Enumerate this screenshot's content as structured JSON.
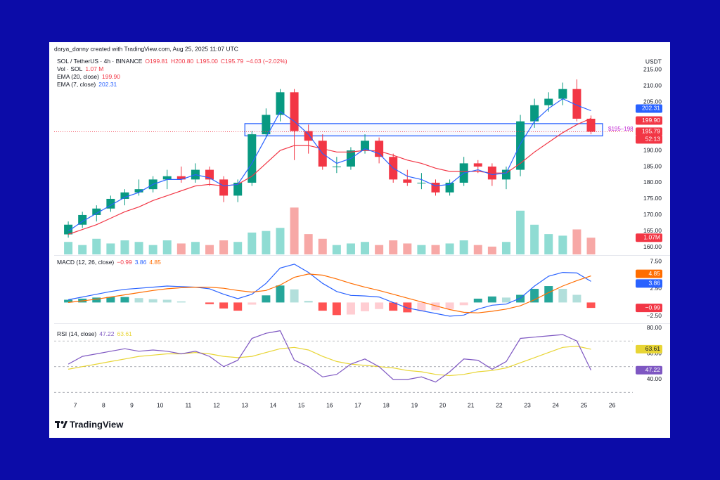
{
  "header": {
    "credit": "darya_danny created with TradingView.com, Aug 25, 2025 11:07 UTC",
    "logo": "TradingView",
    "currency": "USDT"
  },
  "chart_data": [
    {
      "type": "candlestick",
      "symbol": "SOL / TetherUS · 4h · BINANCE",
      "ohlc_text": [
        "O199.81",
        "H200.80",
        "L195.00",
        "C195.79",
        "−4.03 (−2.02%)"
      ],
      "x": [
        6.75,
        7.25,
        7.75,
        8.25,
        8.75,
        9.25,
        9.75,
        10.25,
        10.75,
        11.25,
        11.75,
        12.25,
        12.75,
        13.25,
        13.75,
        14.25,
        14.75,
        15.25,
        15.75,
        16.25,
        16.75,
        17.25,
        17.75,
        18.25,
        18.75,
        19.25,
        19.75,
        20.25,
        20.75,
        21.25,
        21.75,
        22.25,
        22.75,
        23.25,
        23.75,
        24.25,
        24.75,
        25.25
      ],
      "open": [
        164,
        167,
        170,
        172,
        175,
        177,
        178,
        181,
        182,
        181,
        184,
        181,
        176,
        180,
        195,
        201,
        208,
        196,
        193,
        185,
        185,
        190,
        193,
        188,
        181,
        180,
        180,
        177,
        180,
        186,
        185,
        181,
        184,
        199,
        204,
        206,
        209,
        199.81
      ],
      "high": [
        168,
        171,
        173,
        176,
        178,
        181,
        182,
        184,
        185,
        186,
        185,
        182,
        181,
        196,
        203,
        209,
        209,
        198,
        195,
        188,
        191,
        195,
        194,
        189,
        184,
        183,
        181,
        181,
        188,
        187,
        186,
        185,
        201,
        206,
        208,
        211,
        212,
        200.8
      ],
      "low": [
        163,
        166,
        168,
        171,
        173,
        176,
        177,
        178,
        180,
        180,
        179,
        174,
        174,
        179,
        194,
        199,
        187,
        189,
        184,
        183,
        184,
        189,
        186,
        180,
        179,
        178,
        176,
        176,
        179,
        183,
        179,
        178,
        182,
        197,
        202,
        204,
        199,
        195
      ],
      "close": [
        167,
        170,
        172,
        175,
        177,
        178,
        181,
        182,
        181,
        184,
        181,
        176,
        180,
        195,
        201,
        208,
        196,
        193,
        185,
        185,
        190,
        193,
        188,
        181,
        180,
        180,
        177,
        180,
        186,
        185,
        181,
        184,
        199,
        204,
        206,
        209,
        199.82,
        195.79
      ],
      "up_color": "#089981",
      "down_color": "#f23645",
      "last_price_label": "195.79",
      "countdown": "52:13",
      "volume": {
        "name": "Vol · SOL",
        "value_label": "1.07 M",
        "tag": "1.07M",
        "values": [
          0.8,
          0.6,
          1.0,
          0.7,
          0.9,
          0.8,
          0.6,
          0.9,
          0.7,
          0.8,
          0.6,
          0.9,
          0.8,
          1.4,
          1.5,
          1.7,
          3.0,
          1.3,
          1.0,
          0.6,
          0.7,
          0.8,
          0.6,
          0.9,
          0.7,
          0.6,
          0.6,
          0.7,
          0.9,
          0.6,
          0.5,
          0.8,
          2.8,
          1.9,
          1.3,
          1.2,
          1.6,
          1.07
        ],
        "ylim": [
          0,
          3.6
        ],
        "up_color": "#8fdcd3",
        "down_color": "#f7a8a6"
      },
      "series": [
        {
          "name": "EMA (20, close)",
          "value_label": "199.90",
          "color": "#f23645",
          "values": [
            164,
            165.5,
            167,
            169,
            171,
            172.5,
            174.5,
            176,
            177.5,
            179,
            179.5,
            179,
            179.5,
            182,
            186,
            190,
            191.5,
            191.5,
            190.5,
            189.5,
            189.5,
            190,
            189.8,
            188.5,
            187,
            186,
            184.5,
            183.5,
            183.5,
            183.5,
            183,
            183,
            186,
            189.5,
            192.5,
            195.5,
            198,
            199.9
          ]
        },
        {
          "name": "EMA (7, close)",
          "value_label": "202.31",
          "color": "#2962ff",
          "values": [
            165,
            168,
            170.5,
            173,
            175.5,
            177,
            179.5,
            181,
            181,
            182.5,
            181.5,
            179,
            179.5,
            186,
            194,
            202,
            199,
            195,
            189,
            186,
            187.5,
            190.5,
            189,
            184.5,
            182,
            181,
            179,
            179.5,
            183,
            184,
            182.5,
            183,
            192,
            199,
            203,
            206,
            204,
            202.31
          ]
        }
      ],
      "zone": {
        "label": "$195–198",
        "range": [
          194.5,
          198.3
        ],
        "x": [
          13.0,
          25.66
        ],
        "color": "#2962ff",
        "label_color": "#c026d3"
      },
      "xlim": [
        6.25,
        26.73
      ],
      "ylim": [
        157.8,
        219.6
      ],
      "yticks": [
        {
          "value": 160,
          "label": "160.00"
        },
        {
          "value": 165,
          "label": "165.00"
        },
        {
          "value": 170,
          "label": "170.00"
        },
        {
          "value": 175,
          "label": "175.00"
        },
        {
          "value": 180,
          "label": "180.00"
        },
        {
          "value": 185,
          "label": "185.00"
        },
        {
          "value": 190,
          "label": "190.00"
        },
        {
          "value": 205,
          "label": "205.00"
        },
        {
          "value": 210,
          "label": "210.00"
        },
        {
          "value": 215,
          "label": "215.00"
        }
      ],
      "grid": false
    },
    {
      "type": "macd",
      "title": "MACD (12, 26, close)",
      "histogram": {
        "value_label": "−0.99",
        "tag_color": "#f23645",
        "values": [
          0.5,
          0.7,
          0.9,
          1.0,
          1.0,
          0.8,
          0.6,
          0.5,
          0.2,
          0.0,
          -0.3,
          -1.1,
          -1.5,
          -0.4,
          1.3,
          3.1,
          2.4,
          0.3,
          -1.5,
          -2.3,
          -2.2,
          -1.6,
          -1.2,
          -1.5,
          -1.8,
          -1.6,
          -1.4,
          -1.2,
          -0.5,
          0.7,
          1.1,
          0.9,
          1.4,
          2.5,
          3.0,
          2.5,
          1.4,
          -0.99
        ],
        "colors": {
          "up_rising": "#26a69a",
          "up_falling": "#b2dfdb",
          "down_falling": "#ff5252",
          "down_rising": "#ffcdd2"
        }
      },
      "series": [
        {
          "value_label": "3.86",
          "color": "#2962ff",
          "values": [
            0.5,
            1.0,
            1.5,
            2.0,
            2.4,
            2.6,
            2.8,
            3.0,
            2.9,
            2.8,
            2.5,
            1.5,
            0.7,
            1.5,
            3.5,
            6.3,
            7.0,
            5.5,
            3.5,
            2.0,
            1.3,
            1.2,
            1.0,
            0.0,
            -1.0,
            -1.5,
            -2.0,
            -2.5,
            -2.3,
            -1.2,
            -0.5,
            -0.3,
            0.8,
            3.0,
            4.8,
            5.5,
            5.4,
            3.86
          ]
        },
        {
          "value_label": "4.85",
          "color": "#ff6d00",
          "values": [
            0.0,
            0.3,
            0.6,
            1.0,
            1.4,
            1.8,
            2.2,
            2.5,
            2.7,
            2.8,
            2.8,
            2.6,
            2.2,
            1.9,
            2.2,
            3.2,
            4.6,
            5.2,
            5.0,
            4.3,
            3.5,
            2.8,
            2.2,
            1.5,
            0.8,
            0.1,
            -0.6,
            -1.3,
            -1.8,
            -1.9,
            -1.6,
            -1.2,
            -0.6,
            0.5,
            1.8,
            3.0,
            4.0,
            4.85
          ]
        }
      ],
      "xlim": [
        6.25,
        26.73
      ],
      "ylim": [
        -3.8,
        8.4
      ],
      "yticks": [
        {
          "value": 7.5,
          "label": "7.50"
        },
        {
          "value": 2.5,
          "label": "2.50"
        },
        {
          "value": -2.5,
          "label": "−2.50"
        }
      ]
    },
    {
      "type": "line",
      "title": "RSI (14, close)",
      "series": [
        {
          "value_label": "47.22",
          "color": "#7e57c2",
          "tag_text_color": "#ffffff",
          "values": [
            52,
            58,
            60,
            62,
            64,
            62,
            63,
            62,
            60,
            62,
            58,
            50,
            55,
            72,
            76,
            78,
            55,
            50,
            42,
            44,
            52,
            56,
            50,
            40,
            40,
            42,
            38,
            46,
            56,
            55,
            48,
            54,
            72,
            73,
            74,
            75,
            70,
            47.22
          ]
        },
        {
          "value_label": "63.61",
          "color": "#e8d535",
          "tag_text_color": "#131722",
          "values": [
            48,
            50,
            52,
            54,
            56,
            58,
            59,
            60,
            60,
            61,
            60,
            58,
            57,
            58,
            61,
            64,
            65,
            63,
            58,
            54,
            52,
            51,
            50,
            49,
            47,
            46,
            44,
            43,
            44,
            46,
            47,
            49,
            53,
            57,
            61,
            65,
            66,
            63.61
          ]
        }
      ],
      "bands": [
        70,
        50,
        30
      ],
      "xlim": [
        6.25,
        26.73
      ],
      "ylim": [
        26.3,
        83.8
      ],
      "yticks": [
        {
          "value": 80,
          "label": "80.00"
        },
        {
          "value": 60,
          "label": "60.00"
        },
        {
          "value": 40,
          "label": "40.00"
        }
      ],
      "xticks": [
        7,
        8,
        9,
        10,
        11,
        12,
        13,
        14,
        15,
        16,
        17,
        18,
        19,
        20,
        21,
        22,
        23,
        24,
        25,
        26
      ]
    }
  ]
}
